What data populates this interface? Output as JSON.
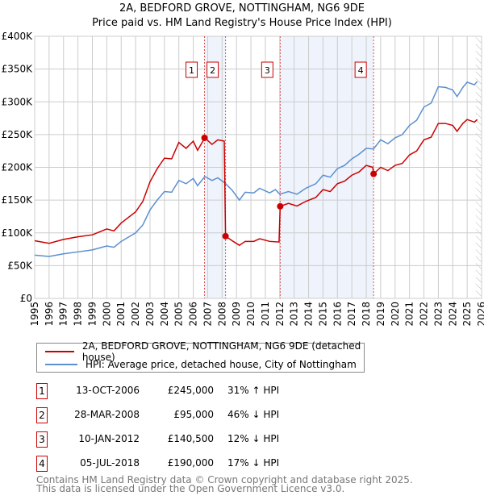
{
  "chart_data": {
    "type": "line",
    "title": "2A, BEDFORD GROVE, NOTTINGHAM, NG6 9DE",
    "subtitle": "Price paid vs. HM Land Registry's House Price Index (HPI)",
    "xlim": [
      1995,
      2026
    ],
    "ylim": [
      0,
      400000
    ],
    "x_ticks": [
      "1995",
      "1996",
      "1997",
      "1998",
      "1999",
      "2000",
      "2001",
      "2002",
      "2003",
      "2004",
      "2005",
      "2006",
      "2007",
      "2008",
      "2009",
      "2010",
      "2011",
      "2012",
      "2013",
      "2014",
      "2015",
      "2016",
      "2017",
      "2018",
      "2019",
      "2020",
      "2021",
      "2022",
      "2023",
      "2024",
      "2025",
      "2026"
    ],
    "y_ticks": [
      {
        "v": 0,
        "l": "£0"
      },
      {
        "v": 50000,
        "l": "£50K"
      },
      {
        "v": 100000,
        "l": "£100K"
      },
      {
        "v": 150000,
        "l": "£150K"
      },
      {
        "v": 200000,
        "l": "£200K"
      },
      {
        "v": 250000,
        "l": "£250K"
      },
      {
        "v": 300000,
        "l": "£300K"
      },
      {
        "v": 350000,
        "l": "£350K"
      },
      {
        "v": 400000,
        "l": "£400K"
      }
    ],
    "grid": true,
    "series": [
      {
        "name": "2A, BEDFORD GROVE, NOTTINGHAM, NG6 9DE (detached house)",
        "color": "#cc0000",
        "x": [
          1995,
          1996,
          1997,
          1998,
          1999,
          2000,
          2000.5,
          2001,
          2002,
          2002.5,
          2003,
          2003.5,
          2004,
          2004.5,
          2005,
          2005.5,
          2006,
          2006.3,
          2006.8,
          2007.3,
          2007.7,
          2008.15,
          2008.24,
          2008.7,
          2009.2,
          2009.6,
          2010.2,
          2010.6,
          2011.3,
          2011.95,
          2012.03,
          2012.6,
          2013.2,
          2013.8,
          2014.5,
          2015,
          2015.5,
          2016,
          2016.5,
          2017,
          2017.5,
          2018,
          2018.45,
          2018.51,
          2019,
          2019.5,
          2020,
          2020.5,
          2021,
          2021.5,
          2022,
          2022.5,
          2023,
          2023.5,
          2024,
          2024.3,
          2024.7,
          2025,
          2025.5,
          2025.7
        ],
        "y": [
          88000,
          84000,
          90000,
          94000,
          97000,
          106000,
          103000,
          115000,
          132000,
          148000,
          178000,
          198000,
          214000,
          213000,
          238000,
          229000,
          240000,
          226000,
          245000,
          235000,
          242000,
          240000,
          95000,
          88000,
          81000,
          87000,
          87000,
          91000,
          87000,
          86000,
          140500,
          145000,
          141000,
          148000,
          154000,
          166000,
          163000,
          175000,
          179000,
          188000,
          193000,
          203000,
          200000,
          190000,
          200000,
          195000,
          203000,
          206000,
          219000,
          225000,
          242000,
          246000,
          267000,
          267000,
          264000,
          255000,
          267000,
          273000,
          269000,
          273000
        ]
      },
      {
        "name": "HPI: Average price, detached house, City of Nottingham",
        "color": "#5b8fd0",
        "x": [
          1995,
          1996,
          1997,
          1998,
          1999,
          2000,
          2000.5,
          2001,
          2002,
          2002.5,
          2003,
          2003.5,
          2004,
          2004.5,
          2005,
          2005.5,
          2006,
          2006.3,
          2006.8,
          2007.3,
          2007.7,
          2008.2,
          2008.7,
          2009.2,
          2009.6,
          2010.2,
          2010.6,
          2011.3,
          2011.7,
          2012,
          2012.6,
          2013.2,
          2013.8,
          2014.5,
          2015,
          2015.5,
          2016,
          2016.5,
          2017,
          2017.5,
          2018,
          2018.5,
          2019,
          2019.5,
          2020,
          2020.5,
          2021,
          2021.5,
          2022,
          2022.5,
          2023,
          2023.5,
          2024,
          2024.3,
          2024.7,
          2025,
          2025.5,
          2025.7
        ],
        "y": [
          66000,
          64000,
          68000,
          71000,
          74000,
          80000,
          78000,
          87000,
          100000,
          112000,
          135000,
          150000,
          163000,
          162000,
          180000,
          175000,
          183000,
          172000,
          186000,
          180000,
          184000,
          176000,
          165000,
          150000,
          162000,
          161000,
          168000,
          161000,
          166000,
          159000,
          163000,
          159000,
          168000,
          175000,
          188000,
          185000,
          198000,
          203000,
          213000,
          220000,
          229000,
          228000,
          242000,
          236000,
          245000,
          250000,
          264000,
          272000,
          292000,
          298000,
          323000,
          322000,
          318000,
          308000,
          322000,
          330000,
          326000,
          331000
        ]
      }
    ],
    "sales": [
      {
        "label": "1",
        "x": 2006.78,
        "date": "13-OCT-2006",
        "price": 245000,
        "price_text": "£245,000",
        "hpi": "31% ↑ HPI"
      },
      {
        "label": "2",
        "x": 2008.24,
        "date": "28-MAR-2008",
        "price": 95000,
        "price_text": "£95,000",
        "hpi": "46% ↓ HPI"
      },
      {
        "label": "3",
        "x": 2012.03,
        "date": "10-JAN-2012",
        "price": 140500,
        "price_text": "£140,500",
        "hpi": "12% ↓ HPI"
      },
      {
        "label": "4",
        "x": 2018.51,
        "date": "05-JUL-2018",
        "price": 190000,
        "price_text": "£190,000",
        "hpi": "17% ↓ HPI"
      }
    ],
    "shaded": [
      [
        2006.78,
        2008.24
      ],
      [
        2012.03,
        2018.51
      ]
    ],
    "forecast_from": 2025.6,
    "legend_position": "below"
  },
  "footer": {
    "line1": "Contains HM Land Registry data © Crown copyright and database right 2025.",
    "line2": "This data is licensed under the Open Government Licence v3.0."
  }
}
